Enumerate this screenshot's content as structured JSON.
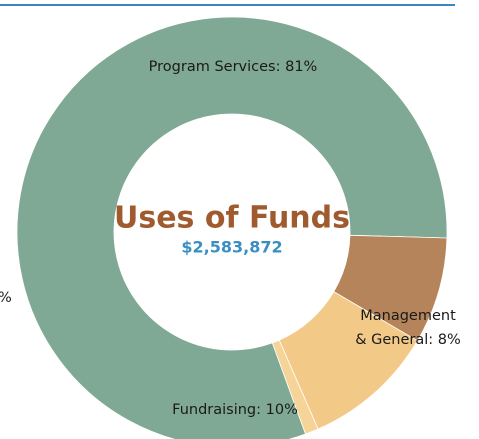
{
  "chart_data": {
    "type": "donut",
    "title": "Uses of Funds",
    "subtitle": "$2,583,872",
    "labels": [
      [
        "Program Services: 81%"
      ],
      [
        "Management",
        "& General: 8%"
      ],
      [
        "Fundraising: 10%"
      ],
      [
        "%"
      ]
    ],
    "values": [
      81,
      8,
      10,
      1
    ],
    "colors": [
      "#80a995",
      "#b5845b",
      "#f3c987",
      "#f6d497"
    ]
  }
}
